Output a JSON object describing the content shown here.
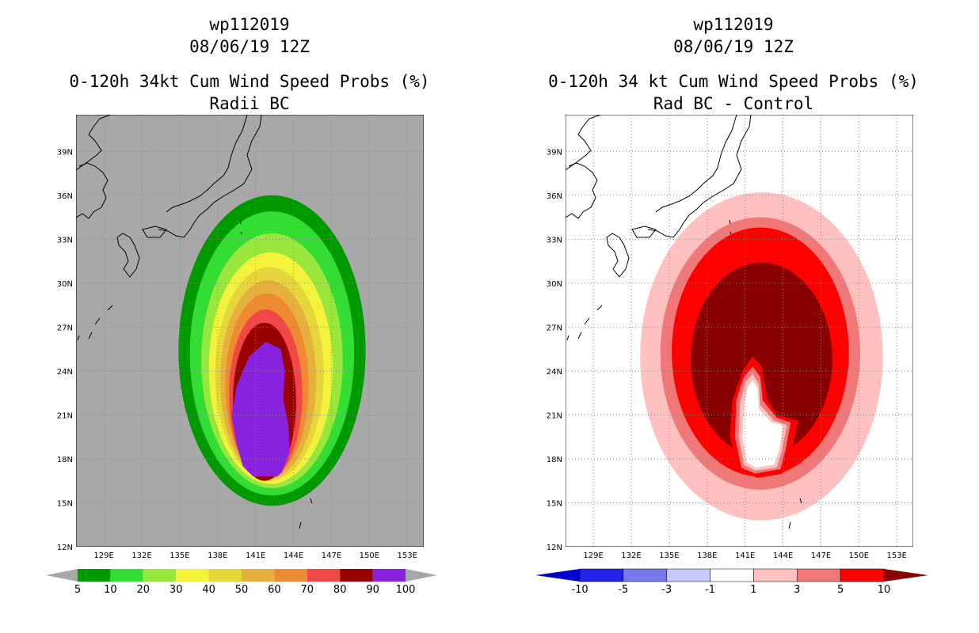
{
  "chart_data": [
    {
      "type": "heatmap",
      "name": "radii-bc",
      "title_lines": [
        "wp112019",
        "08/06/19 12Z",
        "0-120h 34kt Cum Wind Speed Probs (%)",
        "Radii BC"
      ],
      "xticks": [
        "129E",
        "132E",
        "135E",
        "138E",
        "141E",
        "144E",
        "147E",
        "150E",
        "153E"
      ],
      "yticks": [
        "12N",
        "15N",
        "18N",
        "21N",
        "24N",
        "27N",
        "30N",
        "33N",
        "36N",
        "39N"
      ],
      "xlim": [
        126.8,
        154.3
      ],
      "ylim": [
        12,
        41.5
      ],
      "colorbar": {
        "labels": [
          "5",
          "10",
          "20",
          "30",
          "40",
          "50",
          "60",
          "70",
          "80",
          "90",
          "100"
        ],
        "colors": [
          "#009900",
          "#33dd33",
          "#99e63c",
          "#f2f23c",
          "#e6d63c",
          "#e6b03c",
          "#ee8a32",
          "#f04646",
          "#990000",
          "#8822dd"
        ]
      },
      "background": "#a8a8a8",
      "levels": [
        {
          "value": 5,
          "color": "#009900",
          "center_lon": 142.3,
          "center_lat": 25.4,
          "rx": 7.4,
          "ry": 10.6
        },
        {
          "value": 10,
          "color": "#33dd33",
          "center_lon": 142.3,
          "center_lat": 25.2,
          "rx": 6.5,
          "ry": 9.7
        },
        {
          "value": 20,
          "color": "#99e63c",
          "center_lon": 142.3,
          "center_lat": 24.7,
          "rx": 5.6,
          "ry": 8.7
        },
        {
          "value": 30,
          "color": "#f2f23c",
          "center_lon": 142.2,
          "center_lat": 24.2,
          "rx": 4.9,
          "ry": 7.9
        },
        {
          "value": 40,
          "color": "#e6d63c",
          "center_lon": 142.1,
          "center_lat": 23.8,
          "rx": 4.3,
          "ry": 7.3
        },
        {
          "value": 50,
          "color": "#e6b03c",
          "center_lon": 142.0,
          "center_lat": 23.4,
          "rx": 3.8,
          "ry": 6.8
        },
        {
          "value": 60,
          "color": "#ee8a32",
          "center_lon": 141.9,
          "center_lat": 23.0,
          "rx": 3.3,
          "ry": 6.3
        },
        {
          "value": 70,
          "color": "#f04646",
          "center_lon": 141.8,
          "center_lat": 22.4,
          "rx": 2.9,
          "ry": 5.8
        },
        {
          "value": 80,
          "color": "#990000",
          "center_lon": 141.7,
          "center_lat": 21.9,
          "rx": 2.5,
          "ry": 5.4
        }
      ],
      "core": {
        "value": 100,
        "color": "#8822dd",
        "points": [
          [
            141.8,
            26.0
          ],
          [
            143.0,
            25.5
          ],
          [
            143.3,
            24.0
          ],
          [
            143.2,
            22.0
          ],
          [
            143.6,
            20.3
          ],
          [
            143.7,
            18.5
          ],
          [
            143.1,
            17.1
          ],
          [
            142.7,
            16.8
          ],
          [
            140.8,
            16.8
          ],
          [
            140.0,
            17.5
          ],
          [
            139.5,
            19.0
          ],
          [
            139.1,
            21.0
          ],
          [
            139.5,
            23.0
          ],
          [
            140.5,
            25.0
          ]
        ]
      }
    },
    {
      "type": "heatmap",
      "name": "rad-bc-minus-control",
      "title_lines": [
        "wp112019",
        "08/06/19 12Z",
        "0-120h 34 kt Cum Wind Speed Probs (%)",
        "Rad BC - Control"
      ],
      "xticks": [
        "129E",
        "132E",
        "135E",
        "138E",
        "141E",
        "144E",
        "147E",
        "150E",
        "153E"
      ],
      "yticks": [
        "12N",
        "15N",
        "18N",
        "21N",
        "24N",
        "27N",
        "30N",
        "33N",
        "36N",
        "39N"
      ],
      "xlim": [
        126.8,
        154.3
      ],
      "ylim": [
        12,
        41.5
      ],
      "colorbar": {
        "labels": [
          "-10",
          "-5",
          "-3",
          "-1",
          "1",
          "3",
          "5",
          "10"
        ],
        "colors": [
          "#0000cc",
          "#2222ee",
          "#7777ee",
          "#c9c9ff",
          "#ffffff",
          "#ffc0c0",
          "#f07878",
          "#ff0000",
          "#880000"
        ]
      },
      "background": "#ffffff",
      "levels": [
        {
          "value": 1,
          "color": "#ffc0c0",
          "center_lon": 142.3,
          "center_lat": 25.0,
          "rx": 9.6,
          "ry": 11.2
        },
        {
          "value": 3,
          "color": "#f07878",
          "center_lon": 142.2,
          "center_lat": 25.2,
          "rx": 7.9,
          "ry": 9.3
        },
        {
          "value": 5,
          "color": "#ff0000",
          "center_lon": 142.2,
          "center_lat": 25.3,
          "rx": 7.0,
          "ry": 8.5
        },
        {
          "value": 10,
          "color": "#880000",
          "center_lon": 142.3,
          "center_lat": 24.8,
          "rx": 5.6,
          "ry": 6.6
        }
      ],
      "inner": [
        {
          "value": 5,
          "color": "#ff0000",
          "points": [
            [
              141.6,
              25.0
            ],
            [
              142.3,
              24.3
            ],
            [
              142.7,
              22.2
            ],
            [
              143.5,
              21.0
            ],
            [
              145.2,
              20.6
            ],
            [
              144.8,
              19.0
            ],
            [
              144.0,
              17.0
            ],
            [
              142.0,
              16.7
            ],
            [
              140.5,
              17.2
            ],
            [
              139.8,
              19.5
            ],
            [
              140.0,
              22.0
            ],
            [
              140.8,
              24.0
            ]
          ]
        },
        {
          "value": 3,
          "color": "#f07878",
          "points": [
            [
              141.6,
              24.3
            ],
            [
              142.2,
              23.6
            ],
            [
              142.4,
              22.0
            ],
            [
              143.5,
              20.8
            ],
            [
              144.6,
              20.5
            ],
            [
              144.2,
              18.6
            ],
            [
              143.8,
              17.3
            ],
            [
              141.8,
              17.0
            ],
            [
              140.7,
              17.4
            ],
            [
              140.2,
              19.5
            ],
            [
              140.3,
              22.0
            ],
            [
              140.9,
              23.6
            ]
          ]
        },
        {
          "value": 1,
          "color": "#ffc0c0",
          "points": [
            [
              141.6,
              23.8
            ],
            [
              142.1,
              23.1
            ],
            [
              142.2,
              21.7
            ],
            [
              143.3,
              20.6
            ],
            [
              144.3,
              20.3
            ],
            [
              143.9,
              18.5
            ],
            [
              143.5,
              17.4
            ],
            [
              141.8,
              17.2
            ],
            [
              140.9,
              17.6
            ],
            [
              140.5,
              19.5
            ],
            [
              140.6,
              21.8
            ],
            [
              141.0,
              23.2
            ]
          ]
        },
        {
          "value": 0,
          "color": "#ffffff",
          "points": [
            [
              141.6,
              23.4
            ],
            [
              142.0,
              22.8
            ],
            [
              142.1,
              21.4
            ],
            [
              143.1,
              20.5
            ],
            [
              144.0,
              20.3
            ],
            [
              143.7,
              18.6
            ],
            [
              143.3,
              17.6
            ],
            [
              141.8,
              17.4
            ],
            [
              141.1,
              17.8
            ],
            [
              140.8,
              19.5
            ],
            [
              140.9,
              21.6
            ],
            [
              141.2,
              22.9
            ]
          ]
        }
      ]
    }
  ]
}
